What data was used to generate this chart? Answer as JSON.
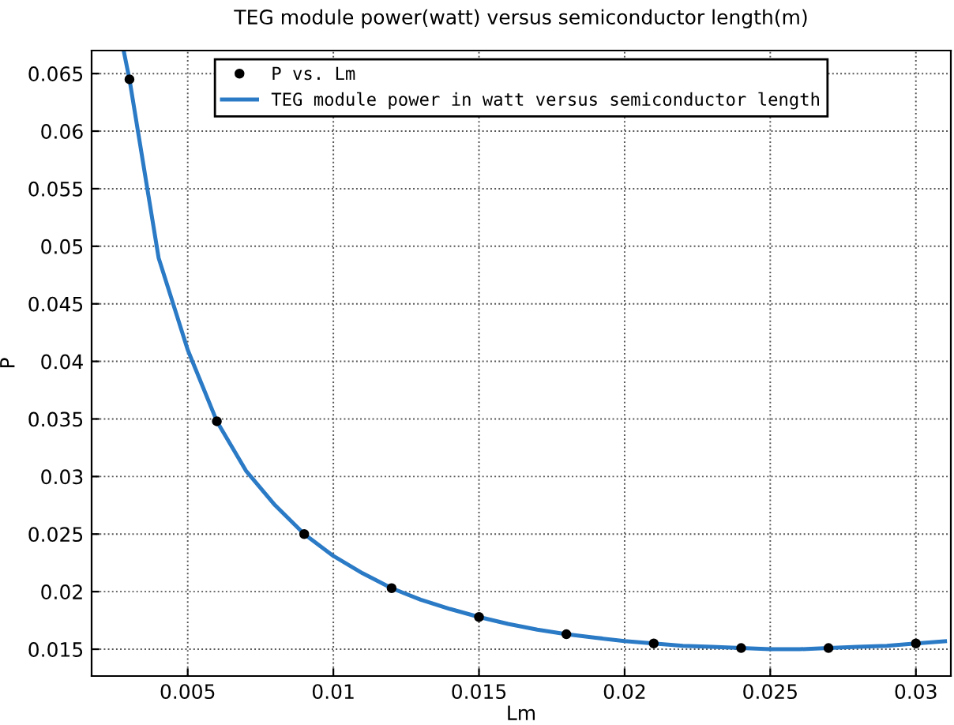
{
  "chart_data": {
    "type": "scatter",
    "title": "TEG module power(watt) versus semiconductor length(m)",
    "xlabel": "Lm",
    "ylabel": "P",
    "xlim": [
      0.0017,
      0.0312
    ],
    "ylim": [
      0.01267,
      0.067
    ],
    "xticks": [
      0.005,
      0.01,
      0.015,
      0.02,
      0.025,
      0.03
    ],
    "yticks": [
      0.015,
      0.02,
      0.025,
      0.03,
      0.035,
      0.04,
      0.045,
      0.05,
      0.055,
      0.06,
      0.065
    ],
    "grid": true,
    "legend": "top",
    "series": [
      {
        "name": "P vs. Lm",
        "color": "#000000",
        "marker": "circle",
        "x": [
          0.003,
          0.006,
          0.009,
          0.012,
          0.015,
          0.018,
          0.021,
          0.024,
          0.027,
          0.03
        ],
        "values": [
          0.0645,
          0.0348,
          0.025,
          0.0203,
          0.0178,
          0.0163,
          0.0155,
          0.0151,
          0.0151,
          0.0155
        ]
      },
      {
        "name": "TEG module power in watt versus semiconductor length",
        "type": "line",
        "color": "#2a7ac6",
        "line_style": "solid",
        "x": [
          0.0028,
          0.003,
          0.004,
          0.005,
          0.006,
          0.007,
          0.008,
          0.009,
          0.01,
          0.011,
          0.012,
          0.013,
          0.014,
          0.015,
          0.016,
          0.017,
          0.018,
          0.019,
          0.02,
          0.021,
          0.022,
          0.023,
          0.024,
          0.025,
          0.026,
          0.027,
          0.028,
          0.029,
          0.03,
          0.031
        ],
        "values": [
          0.067,
          0.0645,
          0.049,
          0.041,
          0.0348,
          0.0305,
          0.0275,
          0.025,
          0.0231,
          0.0216,
          0.0203,
          0.0193,
          0.0185,
          0.0178,
          0.0172,
          0.0167,
          0.0163,
          0.016,
          0.0157,
          0.0155,
          0.0153,
          0.0152,
          0.0151,
          0.015,
          0.015,
          0.0151,
          0.0152,
          0.0153,
          0.0155,
          0.0157
        ]
      }
    ]
  }
}
